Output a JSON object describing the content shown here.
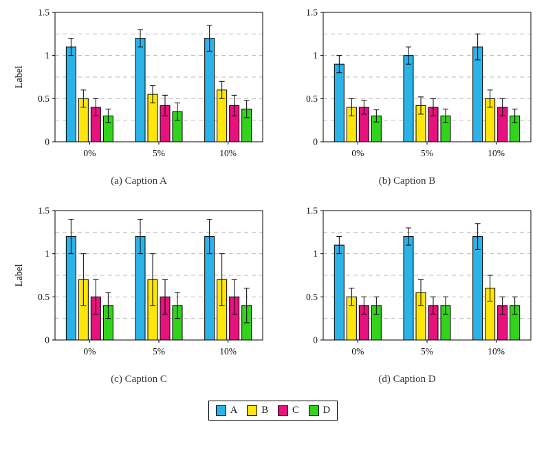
{
  "page": {
    "background": "#ffffff"
  },
  "colors": {
    "A": "#2BB3E8",
    "B": "#FFE60A",
    "C": "#E6127D",
    "D": "#33D21C"
  },
  "grid_color": "#b9b9b9",
  "legend": {
    "items": [
      {
        "label": "A"
      },
      {
        "label": "B"
      },
      {
        "label": "C"
      },
      {
        "label": "D"
      }
    ]
  },
  "chart_data": [
    {
      "type": "bar",
      "title": "(a) Caption A",
      "ylabel": "Label",
      "categories": [
        "0%",
        "5%",
        "10%"
      ],
      "ylim": [
        0,
        1.5
      ],
      "yticks": [
        0,
        0.5,
        1,
        1.5
      ],
      "gridlines": [
        0.25,
        0.5,
        0.75,
        1.0,
        1.25
      ],
      "grid": "dashed",
      "legend_position": "shared-bottom",
      "series": [
        {
          "name": "A",
          "values": [
            1.1,
            1.2,
            1.2
          ],
          "errors": [
            0.1,
            0.1,
            0.15
          ]
        },
        {
          "name": "B",
          "values": [
            0.5,
            0.55,
            0.6
          ],
          "errors": [
            0.1,
            0.1,
            0.1
          ]
        },
        {
          "name": "C",
          "values": [
            0.4,
            0.42,
            0.42
          ],
          "errors": [
            0.1,
            0.12,
            0.12
          ]
        },
        {
          "name": "D",
          "values": [
            0.3,
            0.35,
            0.38
          ],
          "errors": [
            0.08,
            0.1,
            0.1
          ]
        }
      ]
    },
    {
      "type": "bar",
      "title": "(b) Caption B",
      "ylabel": "",
      "categories": [
        "0%",
        "5%",
        "10%"
      ],
      "ylim": [
        0,
        1.5
      ],
      "yticks": [
        0,
        0.5,
        1,
        1.5
      ],
      "gridlines": [
        0.25,
        0.5,
        0.75,
        1.0,
        1.25
      ],
      "grid": "dashed",
      "legend_position": "shared-bottom",
      "series": [
        {
          "name": "A",
          "values": [
            0.9,
            1.0,
            1.1
          ],
          "errors": [
            0.1,
            0.1,
            0.15
          ]
        },
        {
          "name": "B",
          "values": [
            0.4,
            0.42,
            0.5
          ],
          "errors": [
            0.1,
            0.1,
            0.1
          ]
        },
        {
          "name": "C",
          "values": [
            0.4,
            0.4,
            0.4
          ],
          "errors": [
            0.08,
            0.1,
            0.1
          ]
        },
        {
          "name": "D",
          "values": [
            0.3,
            0.3,
            0.3
          ],
          "errors": [
            0.07,
            0.08,
            0.08
          ]
        }
      ]
    },
    {
      "type": "bar",
      "title": "(c) Caption C",
      "ylabel": "Label",
      "categories": [
        "0%",
        "5%",
        "10%"
      ],
      "ylim": [
        0,
        1.5
      ],
      "yticks": [
        0,
        0.5,
        1,
        1.5
      ],
      "gridlines": [
        0.25,
        0.5,
        0.75,
        1.0,
        1.25
      ],
      "grid": "dashed",
      "legend_position": "shared-bottom",
      "series": [
        {
          "name": "A",
          "values": [
            1.2,
            1.2,
            1.2
          ],
          "errors": [
            0.2,
            0.2,
            0.2
          ]
        },
        {
          "name": "B",
          "values": [
            0.7,
            0.7,
            0.7
          ],
          "errors": [
            0.3,
            0.3,
            0.3
          ]
        },
        {
          "name": "C",
          "values": [
            0.5,
            0.5,
            0.5
          ],
          "errors": [
            0.2,
            0.2,
            0.2
          ]
        },
        {
          "name": "D",
          "values": [
            0.4,
            0.4,
            0.4
          ],
          "errors": [
            0.15,
            0.15,
            0.2
          ]
        }
      ]
    },
    {
      "type": "bar",
      "title": "(d) Caption D",
      "ylabel": "",
      "categories": [
        "0%",
        "5%",
        "10%"
      ],
      "ylim": [
        0,
        1.5
      ],
      "yticks": [
        0,
        0.5,
        1,
        1.5
      ],
      "gridlines": [
        0.25,
        0.5,
        0.75,
        1.0,
        1.25
      ],
      "grid": "dashed",
      "legend_position": "shared-bottom",
      "series": [
        {
          "name": "A",
          "values": [
            1.1,
            1.2,
            1.2
          ],
          "errors": [
            0.1,
            0.1,
            0.15
          ]
        },
        {
          "name": "B",
          "values": [
            0.5,
            0.55,
            0.6
          ],
          "errors": [
            0.1,
            0.15,
            0.15
          ]
        },
        {
          "name": "C",
          "values": [
            0.4,
            0.4,
            0.4
          ],
          "errors": [
            0.1,
            0.1,
            0.1
          ]
        },
        {
          "name": "D",
          "values": [
            0.4,
            0.4,
            0.4
          ],
          "errors": [
            0.1,
            0.1,
            0.1
          ]
        }
      ]
    }
  ]
}
